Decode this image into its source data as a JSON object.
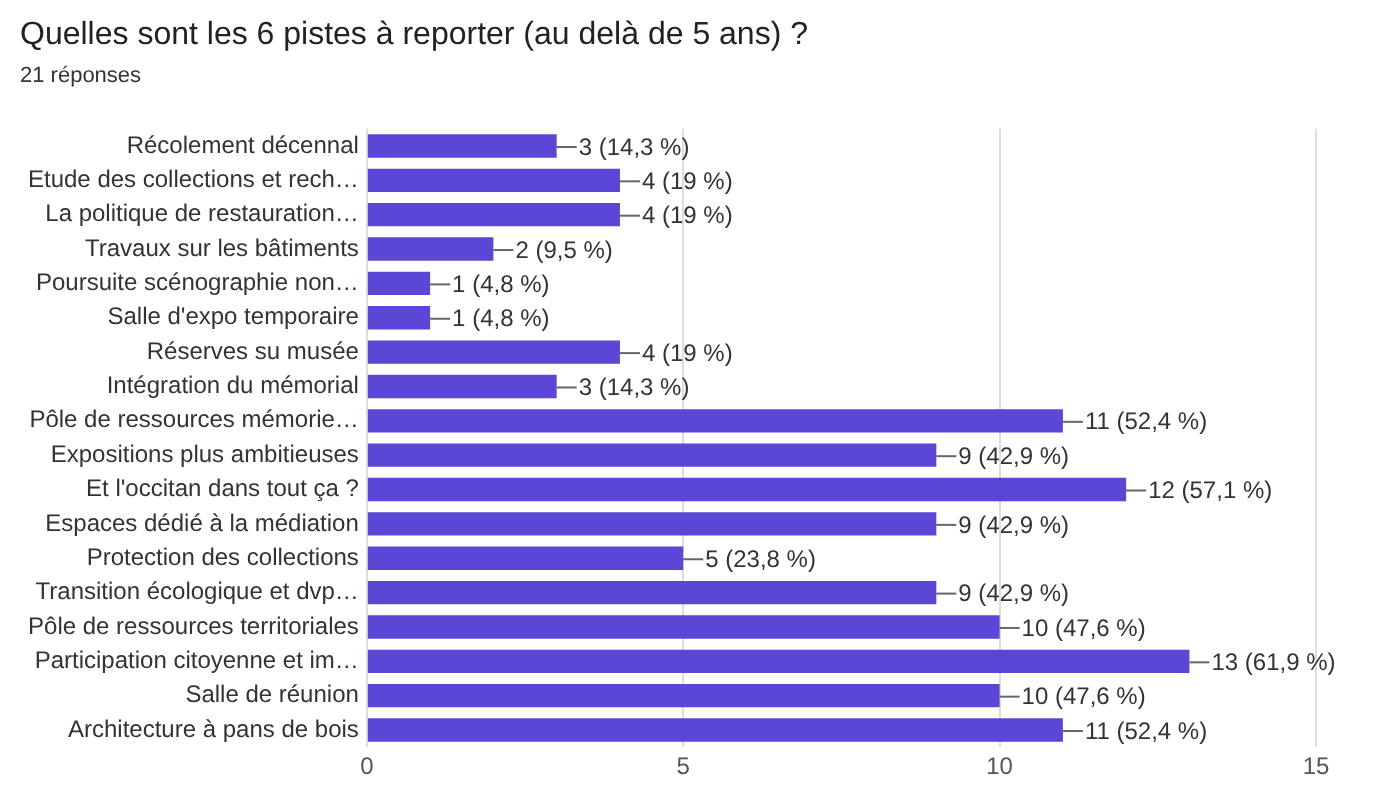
{
  "chart_data": {
    "type": "bar",
    "orientation": "horizontal",
    "title": "Quelles sont les 6 pistes à reporter (au delà de 5 ans) ?",
    "subtitle": "21 réponses",
    "categories": [
      "Récolement décennal",
      "Etude des collections et rech…",
      "La politique de restauration…",
      "Travaux sur les bâtiments",
      "Poursuite scénographie non…",
      "Salle d'expo temporaire",
      "Réserves su musée",
      "Intégration du mémorial",
      "Pôle de ressources mémorie…",
      "Expositions plus ambitieuses",
      "Et l'occitan dans tout ça ?",
      "Espaces dédié à la médiation",
      "Protection des collections",
      "Transition écologique et dvp…",
      "Pôle de ressources territoriales",
      "Participation citoyenne et im…",
      "Salle de réunion",
      "Architecture à pans de bois"
    ],
    "values": [
      3,
      4,
      4,
      2,
      1,
      1,
      4,
      3,
      11,
      9,
      12,
      9,
      5,
      9,
      10,
      13,
      10,
      11
    ],
    "value_labels": [
      "3 (14,3 %)",
      "4 (19 %)",
      "4 (19 %)",
      "2 (9,5 %)",
      "1 (4,8 %)",
      "1 (4,8 %)",
      "4 (19 %)",
      "3 (14,3 %)",
      "11 (52,4 %)",
      "9 (42,9 %)",
      "12 (57,1 %)",
      "9 (42,9 %)",
      "5 (23,8 %)",
      "9 (42,9 %)",
      "10 (47,6 %)",
      "13 (61,9 %)",
      "10 (47,6 %)",
      "11 (52,4 %)"
    ],
    "color": "#5a47d5",
    "xlim": [
      0,
      15
    ],
    "xticks": [
      0,
      5,
      10,
      15
    ],
    "grid": "x",
    "legend": false
  }
}
